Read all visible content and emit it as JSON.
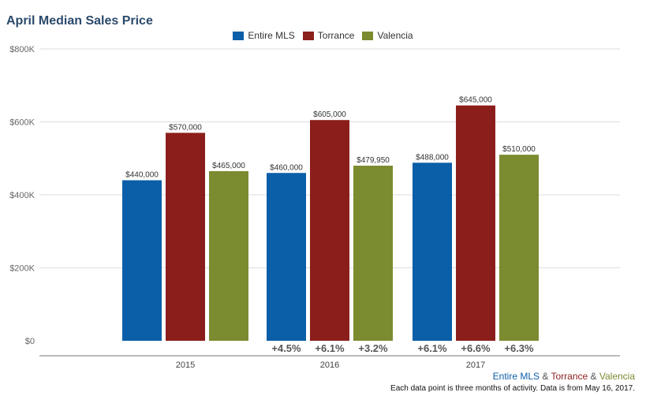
{
  "chart_data": {
    "type": "bar",
    "title": "April Median Sales Price",
    "categories": [
      "2015",
      "2016",
      "2017"
    ],
    "series": [
      {
        "name": "Entire MLS",
        "color": "#0b5ea8",
        "values": [
          440000,
          460000,
          488000
        ],
        "labels": [
          "$440,000",
          "$460,000",
          "$488,000"
        ]
      },
      {
        "name": "Torrance",
        "color": "#8b1e1b",
        "values": [
          570000,
          605000,
          645000
        ],
        "labels": [
          "$570,000",
          "$605,000",
          "$645,000"
        ]
      },
      {
        "name": "Valencia",
        "color": "#7b8b2f",
        "values": [
          465000,
          479950,
          510000
        ],
        "labels": [
          "$465,000",
          "$479,950",
          "$510,000"
        ]
      }
    ],
    "yticks": [
      0,
      200000,
      400000,
      600000,
      800000
    ],
    "ytick_labels": [
      "$0",
      "$200K",
      "$400K",
      "$600K",
      "$800K"
    ],
    "ylim": [
      0,
      800000
    ],
    "grid": true,
    "legend_position": "top-center",
    "changes": [
      null,
      [
        "+4.5%",
        "+6.1%",
        "+3.2%"
      ],
      [
        "+6.1%",
        "+6.6%",
        "+6.3%"
      ]
    ]
  },
  "footer": {
    "series_a": "Entire MLS",
    "amp1": " & ",
    "series_b": "Torrance",
    "amp2": " & ",
    "series_c": "Valencia",
    "note": "Each data point is three months of activity. Data is from May 16, 2017."
  }
}
